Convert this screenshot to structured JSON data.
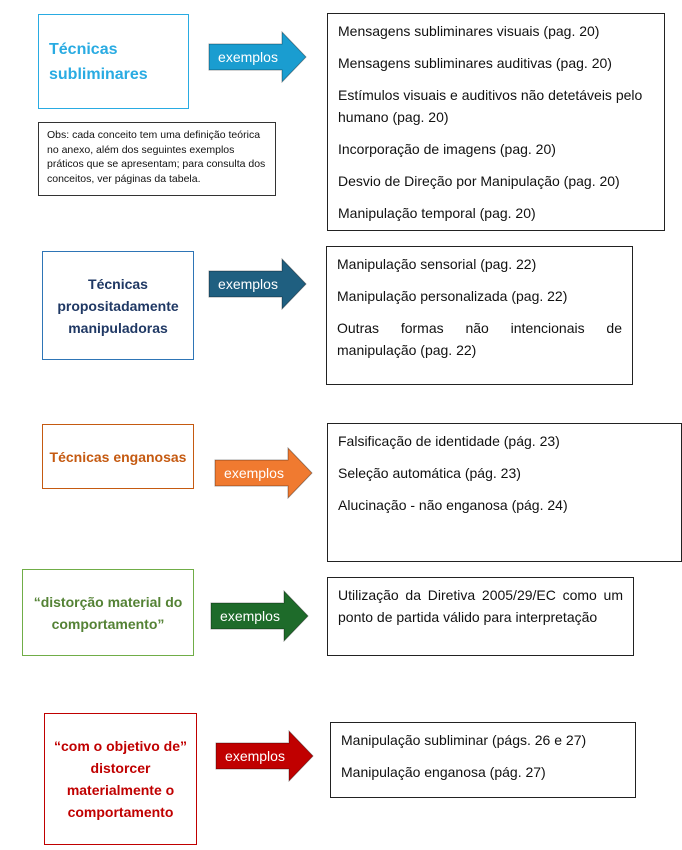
{
  "rows": [
    {
      "category": "Técnicas subliminares",
      "color": "#29abe2",
      "arrow_color": "#1a9dd0",
      "arrow_label": "exemplos",
      "examples": [
        "Mensagens subliminares visuais (pag. 20)",
        "Mensagens subliminares auditivas (pag. 20)",
        "Estímulos visuais e auditivos não detetáveis pelo humano (pag. 20)",
        "Incorporação de imagens (pag. 20)",
        "Desvio de Direção por Manipulação (pag. 20)",
        "Manipulação temporal (pag. 20)"
      ]
    },
    {
      "category": "Técnicas propositadamente manipuladoras",
      "color": "#1f3864",
      "border_color": "#2e75b6",
      "arrow_color": "#1f5f80",
      "arrow_label": "exemplos",
      "examples": [
        "Manipulação sensorial (pag. 22)",
        "Manipulação personalizada (pag. 22)",
        "Outras formas não intencionais de manipulação (pag. 22)"
      ]
    },
    {
      "category": "Técnicas enganosas",
      "color": "#c55a11",
      "arrow_color": "#f07a30",
      "arrow_label": "exemplos",
      "examples": [
        "Falsificação de identidade (pág. 23)",
        "Seleção automática (pág. 23)",
        "Alucinação - não enganosa (pág. 24)"
      ]
    },
    {
      "category": "“distorção material do comportamento”",
      "color": "#548235",
      "border_color": "#70ad47",
      "arrow_color": "#1e6b2a",
      "arrow_label": "exemplos",
      "examples": [
        "Utilização da Diretiva 2005/29/EC como um ponto de partida válido para interpretação"
      ]
    },
    {
      "category": "“com o objetivo de” distorcer materialmente o comportamento",
      "color": "#c00000",
      "arrow_color": "#c00000",
      "arrow_label": "exemplos",
      "examples": [
        "Manipulação subliminar (págs. 26 e 27)",
        "Manipulação enganosa (pág. 27)"
      ]
    }
  ],
  "note": "Obs: cada conceito tem uma definição teórica no anexo, além dos seguintes exemplos práticos que se apresentam; para consulta dos conceitos, ver páginas da tabela."
}
